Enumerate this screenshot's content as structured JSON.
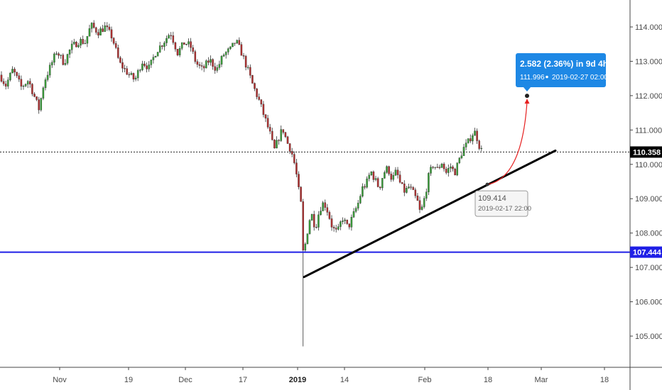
{
  "chart_data": {
    "type": "candlestick",
    "title": "",
    "ylim": [
      104.25,
      115.05
    ],
    "y_ticks": [
      105,
      106,
      107,
      108,
      109,
      110,
      111,
      112,
      113,
      114
    ],
    "y_tick_labels": [
      "105.000",
      "106.000",
      "107.000",
      "108.000",
      "109.000",
      "110.000",
      "111.000",
      "112.000",
      "113.000",
      "114.000"
    ],
    "x_ticks": [
      {
        "label": "Nov",
        "bold": false
      },
      {
        "label": "19",
        "bold": false
      },
      {
        "label": "Dec",
        "bold": false
      },
      {
        "label": "17",
        "bold": false
      },
      {
        "label": "2019",
        "bold": true
      },
      {
        "label": "14",
        "bold": false
      },
      {
        "label": "Feb",
        "bold": false
      },
      {
        "label": "18",
        "bold": false
      },
      {
        "label": "Mar",
        "bold": false
      },
      {
        "label": "18",
        "bold": false
      }
    ],
    "price_path": [
      {
        "t": 0,
        "p": 112.6
      },
      {
        "t": 8,
        "p": 112.3
      },
      {
        "t": 18,
        "p": 112.75
      },
      {
        "t": 30,
        "p": 112.25
      },
      {
        "t": 40,
        "p": 112.45
      },
      {
        "t": 48,
        "p": 112.0
      },
      {
        "t": 55,
        "p": 111.6
      },
      {
        "t": 62,
        "p": 112.4
      },
      {
        "t": 70,
        "p": 112.8
      },
      {
        "t": 80,
        "p": 113.3
      },
      {
        "t": 90,
        "p": 112.95
      },
      {
        "t": 100,
        "p": 113.4
      },
      {
        "t": 112,
        "p": 113.6
      },
      {
        "t": 120,
        "p": 113.55
      },
      {
        "t": 128,
        "p": 114.05
      },
      {
        "t": 138,
        "p": 113.85
      },
      {
        "t": 148,
        "p": 114.0
      },
      {
        "t": 158,
        "p": 113.7
      },
      {
        "t": 168,
        "p": 112.95
      },
      {
        "t": 180,
        "p": 112.65
      },
      {
        "t": 190,
        "p": 112.45
      },
      {
        "t": 200,
        "p": 113.0
      },
      {
        "t": 210,
        "p": 112.8
      },
      {
        "t": 220,
        "p": 113.3
      },
      {
        "t": 230,
        "p": 113.55
      },
      {
        "t": 240,
        "p": 113.85
      },
      {
        "t": 250,
        "p": 113.25
      },
      {
        "t": 260,
        "p": 113.55
      },
      {
        "t": 268,
        "p": 113.45
      },
      {
        "t": 276,
        "p": 112.95
      },
      {
        "t": 285,
        "p": 112.75
      },
      {
        "t": 295,
        "p": 113.05
      },
      {
        "t": 305,
        "p": 112.75
      },
      {
        "t": 315,
        "p": 113.2
      },
      {
        "t": 325,
        "p": 113.35
      },
      {
        "t": 332,
        "p": 113.6
      },
      {
        "t": 340,
        "p": 113.25
      },
      {
        "t": 348,
        "p": 112.8
      },
      {
        "t": 356,
        "p": 112.3
      },
      {
        "t": 364,
        "p": 111.9
      },
      {
        "t": 372,
        "p": 111.4
      },
      {
        "t": 380,
        "p": 110.9
      },
      {
        "t": 386,
        "p": 110.4
      },
      {
        "t": 392,
        "p": 110.75
      },
      {
        "t": 398,
        "p": 111.05
      },
      {
        "t": 404,
        "p": 110.65
      },
      {
        "t": 410,
        "p": 110.4
      },
      {
        "t": 416,
        "p": 109.9
      },
      {
        "t": 420,
        "p": 109.3
      },
      {
        "t": 424,
        "p": 108.8
      },
      {
        "t": 427,
        "p": 107.3
      },
      {
        "t": 430,
        "p": 107.7
      },
      {
        "t": 434,
        "p": 108.2
      },
      {
        "t": 438,
        "p": 108.6
      },
      {
        "t": 444,
        "p": 108.15
      },
      {
        "t": 450,
        "p": 108.7
      },
      {
        "t": 456,
        "p": 108.9
      },
      {
        "t": 462,
        "p": 108.6
      },
      {
        "t": 468,
        "p": 108.15
      },
      {
        "t": 475,
        "p": 108.0
      },
      {
        "t": 482,
        "p": 108.45
      },
      {
        "t": 490,
        "p": 108.15
      },
      {
        "t": 497,
        "p": 108.5
      },
      {
        "t": 504,
        "p": 108.85
      },
      {
        "t": 510,
        "p": 109.3
      },
      {
        "t": 516,
        "p": 109.45
      },
      {
        "t": 522,
        "p": 109.8
      },
      {
        "t": 528,
        "p": 109.55
      },
      {
        "t": 534,
        "p": 109.3
      },
      {
        "t": 540,
        "p": 109.75
      },
      {
        "t": 546,
        "p": 109.9
      },
      {
        "t": 552,
        "p": 109.55
      },
      {
        "t": 558,
        "p": 109.8
      },
      {
        "t": 564,
        "p": 109.4
      },
      {
        "t": 570,
        "p": 109.2
      },
      {
        "t": 576,
        "p": 109.35
      },
      {
        "t": 582,
        "p": 109.15
      },
      {
        "t": 588,
        "p": 108.9
      },
      {
        "t": 592,
        "p": 108.55
      },
      {
        "t": 598,
        "p": 109.05
      },
      {
        "t": 604,
        "p": 109.7
      },
      {
        "t": 610,
        "p": 110.0
      },
      {
        "t": 616,
        "p": 109.85
      },
      {
        "t": 622,
        "p": 110.05
      },
      {
        "t": 628,
        "p": 109.75
      },
      {
        "t": 634,
        "p": 109.95
      },
      {
        "t": 640,
        "p": 109.75
      },
      {
        "t": 646,
        "p": 110.1
      },
      {
        "t": 652,
        "p": 110.45
      },
      {
        "t": 658,
        "p": 110.6
      },
      {
        "t": 664,
        "p": 110.85
      },
      {
        "t": 668,
        "p": 110.95
      },
      {
        "t": 672,
        "p": 110.75
      },
      {
        "t": 676,
        "p": 110.45
      },
      {
        "t": 680,
        "p": 110.36
      }
    ],
    "spike_low": 104.7,
    "last_price_label": "110.358",
    "last_price": 110.358,
    "horizontal_level": {
      "value": 107.444,
      "label": "107.444",
      "color": "#1f1fe6"
    },
    "trendline": {
      "from": 106.72,
      "to": 110.4,
      "color": "#000000"
    },
    "projection": {
      "start_value": 109.414,
      "start_label_value": "109.414",
      "start_label_date": "2019-02-17 22:00",
      "end_value": 111.996,
      "tooltip_line1": "2.582 (2.36%) in 9d 4h",
      "tooltip_line2_value": "111.996",
      "tooltip_line2_date": "2019-02-27  02:00",
      "arrow_color": "#e62020",
      "tooltip_color": "#1e88e5"
    },
    "colors": {
      "up": "#3a9d3a",
      "down": "#b03030",
      "wick": "#333333",
      "axis": "#444444"
    },
    "grid": false
  }
}
